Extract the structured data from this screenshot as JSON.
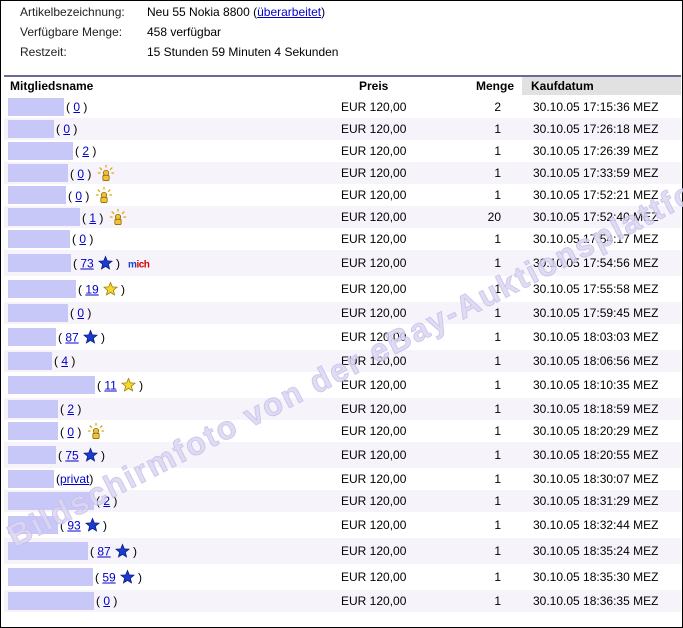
{
  "info": {
    "artikel_label": "Artikelbezeichnung:",
    "artikel_value": "Neu 55 Nokia 8800",
    "artikel_link": "überarbeitet",
    "menge_label": "Verfügbare Menge:",
    "menge_value": "458 verfügbar",
    "restzeit_label": "Restzeit:",
    "restzeit_value": "15 Stunden 59 Minuten 4 Sekunden"
  },
  "table": {
    "headers": {
      "member": "Mitgliedsname",
      "price": "Preis",
      "qty": "Menge",
      "date": "Kaufdatum"
    },
    "rows": [
      {
        "fb": "0",
        "icon": "none",
        "price": "EUR 120,00",
        "qty": "2",
        "date": "30.10.05 17:15:36 MEZ"
      },
      {
        "fb": "0",
        "icon": "none",
        "price": "EUR 120,00",
        "qty": "1",
        "date": "30.10.05 17:26:18 MEZ"
      },
      {
        "fb": "2",
        "icon": "none",
        "price": "EUR 120,00",
        "qty": "1",
        "date": "30.10.05 17:26:39 MEZ"
      },
      {
        "fb": "0",
        "icon": "new",
        "price": "EUR 120,00",
        "qty": "1",
        "date": "30.10.05 17:33:59 MEZ"
      },
      {
        "fb": "0",
        "icon": "new",
        "price": "EUR 120,00",
        "qty": "1",
        "date": "30.10.05 17:52:21 MEZ"
      },
      {
        "fb": "1",
        "icon": "new",
        "price": "EUR 120,00",
        "qty": "20",
        "date": "30.10.05 17:52:40 MEZ"
      },
      {
        "fb": "0",
        "icon": "none",
        "price": "EUR 120,00",
        "qty": "1",
        "date": "30.10.05 17:54:17 MEZ"
      },
      {
        "fb": "73",
        "icon": "blue",
        "me": "mich",
        "price": "EUR 120,00",
        "qty": "1",
        "date": "30.10.05 17:54:56 MEZ"
      },
      {
        "fb": "19",
        "icon": "yellow",
        "price": "EUR 120,00",
        "qty": "1",
        "date": "30.10.05 17:55:58 MEZ"
      },
      {
        "fb": "0",
        "icon": "none",
        "price": "EUR 120,00",
        "qty": "1",
        "date": "30.10.05 17:59:45 MEZ"
      },
      {
        "fb": "87",
        "icon": "blue",
        "price": "EUR 120,00",
        "qty": "1",
        "date": "30.10.05 18:03:03 MEZ"
      },
      {
        "fb": "4",
        "icon": "none",
        "price": "EUR 120,00",
        "qty": "1",
        "date": "30.10.05 18:06:56 MEZ"
      },
      {
        "fb": "11",
        "icon": "yellow",
        "price": "EUR 120,00",
        "qty": "1",
        "date": "30.10.05 18:10:35 MEZ"
      },
      {
        "fb": "2",
        "icon": "none",
        "price": "EUR 120,00",
        "qty": "1",
        "date": "30.10.05 18:18:59 MEZ"
      },
      {
        "fb": "0",
        "icon": "new",
        "price": "EUR 120,00",
        "qty": "1",
        "date": "30.10.05 18:20:29 MEZ"
      },
      {
        "fb": "75",
        "icon": "blue",
        "price": "EUR 120,00",
        "qty": "1",
        "date": "30.10.05 18:20:55 MEZ"
      },
      {
        "fb": "privat",
        "icon": "none",
        "price": "EUR 120,00",
        "qty": "1",
        "date": "30.10.05 18:30:07 MEZ"
      },
      {
        "fb": "2",
        "icon": "none",
        "price": "EUR 120,00",
        "qty": "1",
        "date": "30.10.05 18:31:29 MEZ"
      },
      {
        "fb": "93",
        "icon": "blue",
        "price": "EUR 120,00",
        "qty": "1",
        "date": "30.10.05 18:32:44 MEZ"
      },
      {
        "fb": "87",
        "icon": "blue",
        "price": "EUR 120,00",
        "qty": "1",
        "date": "30.10.05 18:35:24 MEZ"
      },
      {
        "fb": "59",
        "icon": "blue",
        "price": "EUR 120,00",
        "qty": "1",
        "date": "30.10.05 18:35:30 MEZ"
      },
      {
        "fb": "0",
        "icon": "none",
        "price": "EUR 120,00",
        "qty": "1",
        "date": "30.10.05 18:36:35 MEZ"
      }
    ]
  },
  "watermark": "Bildschirmfoto von der eBay-Auktionsplattform",
  "colors": {
    "link": "#0000cc",
    "name_mask": "#c8c8f8",
    "alt_row": "#f6f4fa",
    "date_header": "#e1e1e1"
  }
}
